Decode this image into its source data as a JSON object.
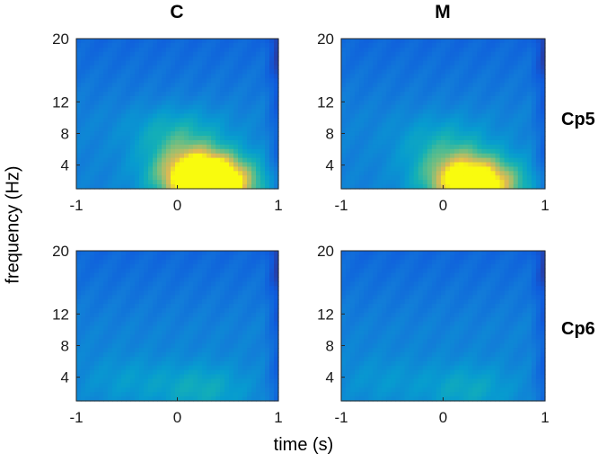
{
  "figure": {
    "ylabel": "frequency (Hz)",
    "xlabel": "time (s)",
    "col_titles": [
      "C",
      "M"
    ],
    "row_titles": [
      "Cp5",
      "Cp6"
    ],
    "colormap": "parula",
    "colors": {
      "low": "#352a87",
      "mid": "#1fa2d3",
      "high": "#f9fb0e"
    }
  },
  "chart_data": [
    {
      "type": "heatmap",
      "title": "C",
      "row": "Cp5",
      "x_range": [
        -1,
        1
      ],
      "y_range": [
        1,
        20
      ],
      "x_ticks": [
        "-1",
        "0",
        "1"
      ],
      "y_ticks": [
        "4",
        "8",
        "12",
        "20"
      ],
      "blobs": [
        {
          "t": 0.2,
          "f": 3.5,
          "amp": 0.55
        },
        {
          "t": 0.35,
          "f": 1.3,
          "amp": 0.75
        },
        {
          "t": 0.0,
          "f": 8.0,
          "amp": 0.25
        }
      ]
    },
    {
      "type": "heatmap",
      "title": "M",
      "row": "Cp5",
      "x_range": [
        -1,
        1
      ],
      "y_range": [
        1,
        20
      ],
      "x_ticks": [
        "-1",
        "0",
        "1"
      ],
      "y_ticks": [
        "4",
        "8",
        "12",
        "20"
      ],
      "blobs": [
        {
          "t": 0.2,
          "f": 3.0,
          "amp": 0.4
        },
        {
          "t": 0.35,
          "f": 1.2,
          "amp": 0.6
        },
        {
          "t": 0.0,
          "f": 7.0,
          "amp": 0.2
        }
      ]
    },
    {
      "type": "heatmap",
      "title": "",
      "row": "Cp6",
      "x_range": [
        -1,
        1
      ],
      "y_range": [
        1,
        20
      ],
      "x_ticks": [
        "-1",
        "0",
        "1"
      ],
      "y_ticks": [
        "4",
        "8",
        "12",
        "20"
      ],
      "blobs": [
        {
          "t": 0.25,
          "f": 2.5,
          "amp": 0.22
        },
        {
          "t": -0.5,
          "f": 3.5,
          "amp": 0.12
        }
      ]
    },
    {
      "type": "heatmap",
      "title": "",
      "row": "Cp6",
      "x_range": [
        -1,
        1
      ],
      "y_range": [
        1,
        20
      ],
      "x_ticks": [
        "-1",
        "0",
        "1"
      ],
      "y_ticks": [
        "4",
        "8",
        "12",
        "20"
      ],
      "blobs": [
        {
          "t": 0.25,
          "f": 2.5,
          "amp": 0.2
        },
        {
          "t": -0.6,
          "f": 3.5,
          "amp": 0.1
        }
      ]
    }
  ]
}
